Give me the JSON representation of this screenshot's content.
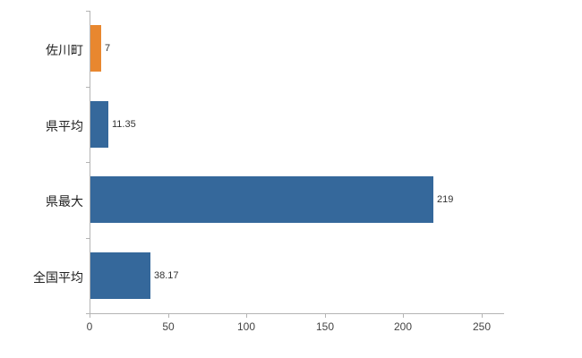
{
  "chart_data": {
    "type": "bar",
    "orientation": "horizontal",
    "title": "",
    "categories": [
      "佐川町",
      "県平均",
      "県最大",
      "全国平均"
    ],
    "values": [
      7,
      11.35,
      219,
      38.17
    ],
    "value_labels": [
      "7",
      "11.35",
      "219",
      "38.17"
    ],
    "bar_colors": [
      "#e8872f",
      "#35689b",
      "#35689b",
      "#35689b"
    ],
    "x_ticks": [
      0,
      50,
      100,
      150,
      200,
      250
    ],
    "xlim": [
      0,
      264
    ],
    "grid": false,
    "legend": false,
    "xlabel": "",
    "ylabel": ""
  },
  "colors": {
    "axis": "#b4b4b4",
    "category_text": "#222222",
    "value_text": "#333333",
    "tick_text": "#444444",
    "background": "#ffffff"
  }
}
